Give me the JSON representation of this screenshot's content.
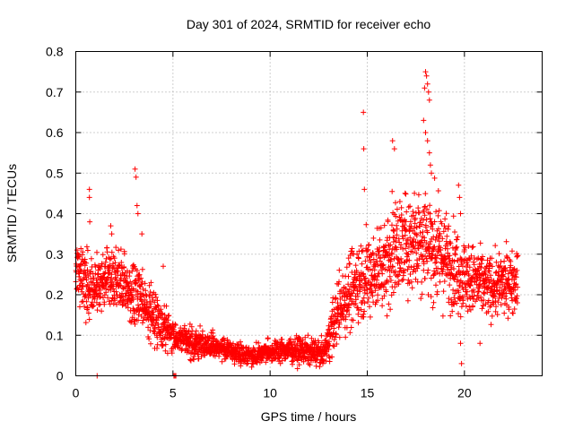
{
  "chart_data": {
    "type": "scatter",
    "title": "Day 301 of 2024, SRMTID for receiver echo",
    "xlabel": "GPS time / hours",
    "ylabel": "SRMTID / TECUs",
    "xlim": [
      0,
      24
    ],
    "ylim": [
      0,
      0.8
    ],
    "xticks": [
      0,
      5,
      10,
      15,
      20
    ],
    "xtick_labels": [
      "0",
      "5",
      "10",
      "15",
      "20"
    ],
    "yticks": [
      0,
      0.1,
      0.2,
      0.3,
      0.4,
      0.5,
      0.6,
      0.7,
      0.8
    ],
    "ytick_labels": [
      "0",
      "0.1",
      "0.2",
      "0.3",
      "0.4",
      "0.5",
      "0.6",
      "0.7",
      "0.8"
    ],
    "grid": true,
    "marker": "+",
    "color": "#ff0000",
    "series": [
      {
        "name": "echo",
        "profile_x": [
          0,
          0.5,
          1,
          1.5,
          2,
          2.5,
          3,
          3.5,
          4,
          4.5,
          5,
          5.5,
          6,
          7,
          8,
          9,
          10,
          11,
          12,
          12.8,
          13.2,
          13.7,
          14.2,
          14.7,
          15.2,
          15.7,
          16.2,
          16.7,
          17.2,
          17.7,
          18.2,
          18.7,
          19.2,
          19.7,
          20.2,
          20.7,
          21.2,
          21.7,
          22.2,
          22.7
        ],
        "profile_y": [
          0.26,
          0.23,
          0.22,
          0.24,
          0.25,
          0.22,
          0.2,
          0.18,
          0.15,
          0.12,
          0.1,
          0.09,
          0.08,
          0.075,
          0.06,
          0.05,
          0.06,
          0.065,
          0.06,
          0.055,
          0.12,
          0.18,
          0.22,
          0.24,
          0.25,
          0.27,
          0.3,
          0.32,
          0.33,
          0.35,
          0.33,
          0.3,
          0.28,
          0.26,
          0.24,
          0.23,
          0.22,
          0.22,
          0.23,
          0.24
        ],
        "spread": [
          0.06,
          0.06,
          0.06,
          0.06,
          0.06,
          0.06,
          0.07,
          0.06,
          0.05,
          0.04,
          0.035,
          0.03,
          0.03,
          0.025,
          0.02,
          0.02,
          0.02,
          0.025,
          0.025,
          0.025,
          0.05,
          0.07,
          0.08,
          0.08,
          0.08,
          0.09,
          0.1,
          0.1,
          0.1,
          0.11,
          0.11,
          0.1,
          0.09,
          0.08,
          0.07,
          0.07,
          0.06,
          0.06,
          0.06,
          0.06
        ],
        "points_per_hour": 120,
        "x_end": 22.75,
        "outliers": [
          {
            "x": 0.7,
            "y": 0.46
          },
          {
            "x": 0.7,
            "y": 0.44
          },
          {
            "x": 0.72,
            "y": 0.38
          },
          {
            "x": 1.8,
            "y": 0.37
          },
          {
            "x": 1.85,
            "y": 0.35
          },
          {
            "x": 3.05,
            "y": 0.51
          },
          {
            "x": 3.1,
            "y": 0.49
          },
          {
            "x": 3.15,
            "y": 0.42
          },
          {
            "x": 3.2,
            "y": 0.4
          },
          {
            "x": 3.4,
            "y": 0.35
          },
          {
            "x": 4.5,
            "y": 0.27
          },
          {
            "x": 14.8,
            "y": 0.65
          },
          {
            "x": 14.82,
            "y": 0.56
          },
          {
            "x": 14.85,
            "y": 0.46
          },
          {
            "x": 16.3,
            "y": 0.58
          },
          {
            "x": 16.4,
            "y": 0.56
          },
          {
            "x": 18.0,
            "y": 0.75
          },
          {
            "x": 18.05,
            "y": 0.74
          },
          {
            "x": 18.1,
            "y": 0.72
          },
          {
            "x": 17.95,
            "y": 0.71
          },
          {
            "x": 18.15,
            "y": 0.7
          },
          {
            "x": 18.2,
            "y": 0.68
          },
          {
            "x": 17.9,
            "y": 0.63
          },
          {
            "x": 18.0,
            "y": 0.6
          },
          {
            "x": 18.1,
            "y": 0.58
          },
          {
            "x": 18.2,
            "y": 0.55
          },
          {
            "x": 18.25,
            "y": 0.52
          },
          {
            "x": 18.3,
            "y": 0.5
          },
          {
            "x": 19.7,
            "y": 0.47
          },
          {
            "x": 19.75,
            "y": 0.44
          },
          {
            "x": 19.8,
            "y": 0.4
          },
          {
            "x": 19.8,
            "y": 0.08
          },
          {
            "x": 19.85,
            "y": 0.03
          },
          {
            "x": 20.8,
            "y": 0.08
          }
        ],
        "zeros": [
          {
            "x": 1.1,
            "y": 0
          },
          {
            "x": 5.05,
            "y": 0
          },
          {
            "x": 5.1,
            "y": 0
          },
          {
            "x": 5.15,
            "y": 0
          }
        ]
      }
    ]
  }
}
